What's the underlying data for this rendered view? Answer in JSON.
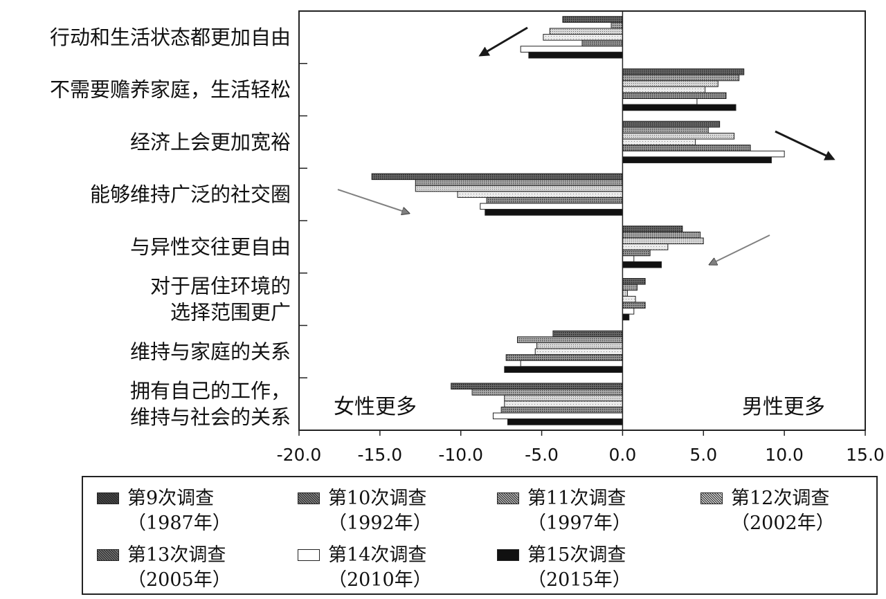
{
  "chart_data": {
    "type": "bar",
    "orientation": "horizontal",
    "categories": [
      [
        "行动和生活状态都更加自由"
      ],
      [
        "不需要赡养家庭，生活轻松"
      ],
      [
        "经济上会更加宽裕"
      ],
      [
        "能够维持广泛的社交圈"
      ],
      [
        "与异性交往更自由"
      ],
      [
        "对于居住环境的",
        "选择范围更广"
      ],
      [
        "维持与家庭的关系"
      ],
      [
        "拥有自己的工作，",
        "维持与社会的关系"
      ]
    ],
    "series": [
      {
        "name": "第9次调查",
        "year": "（1987年）",
        "values": [
          -3.7,
          7.5,
          6.0,
          -15.5,
          3.7,
          1.4,
          -4.3,
          -10.6
        ]
      },
      {
        "name": "第10次调查",
        "year": "（1992年）",
        "values": [
          -0.7,
          7.2,
          5.3,
          -12.8,
          4.8,
          0.9,
          -6.5,
          -9.3
        ]
      },
      {
        "name": "第11次调查",
        "year": "（1997年）",
        "values": [
          -4.5,
          5.9,
          6.9,
          -12.8,
          5.0,
          0.3,
          -5.3,
          -7.3
        ]
      },
      {
        "name": "第12次调查",
        "year": "（2002年）",
        "values": [
          -4.9,
          5.1,
          4.5,
          -10.2,
          2.8,
          0.8,
          -5.4,
          -7.3
        ]
      },
      {
        "name": "第13次调查",
        "year": "（2005年）",
        "values": [
          -2.5,
          6.4,
          7.9,
          -8.4,
          1.7,
          1.4,
          -7.2,
          -7.5
        ]
      },
      {
        "name": "第14次调查",
        "year": "（2010年）",
        "values": [
          -6.3,
          4.6,
          10.0,
          -8.8,
          0.7,
          0.7,
          -6.3,
          -8.0
        ]
      },
      {
        "name": "第15次调查",
        "year": "（2015年）",
        "values": [
          -5.8,
          7.0,
          9.2,
          -8.5,
          2.4,
          0.4,
          -7.3,
          -7.1
        ]
      }
    ],
    "xlim": [
      -20.0,
      15.0
    ],
    "xticks": [
      "-20.0",
      "-15.0",
      "-10.0",
      "-5.0",
      "0.0",
      "5.0",
      "10.0",
      "15.0"
    ],
    "annotations": {
      "left": "女性更多",
      "right": "男性更多"
    },
    "legend_position": "bottom",
    "grid": false
  },
  "colors": {
    "series_fills": [
      "#4a4a4a",
      "#8c8c8c",
      "#bdbdbd",
      "#dadada",
      "#7a7a7a",
      "#ffffff",
      "#111111"
    ],
    "outline": "#222222",
    "arrow_dark": "#1a1a1a",
    "arrow_gray": "#808080"
  }
}
